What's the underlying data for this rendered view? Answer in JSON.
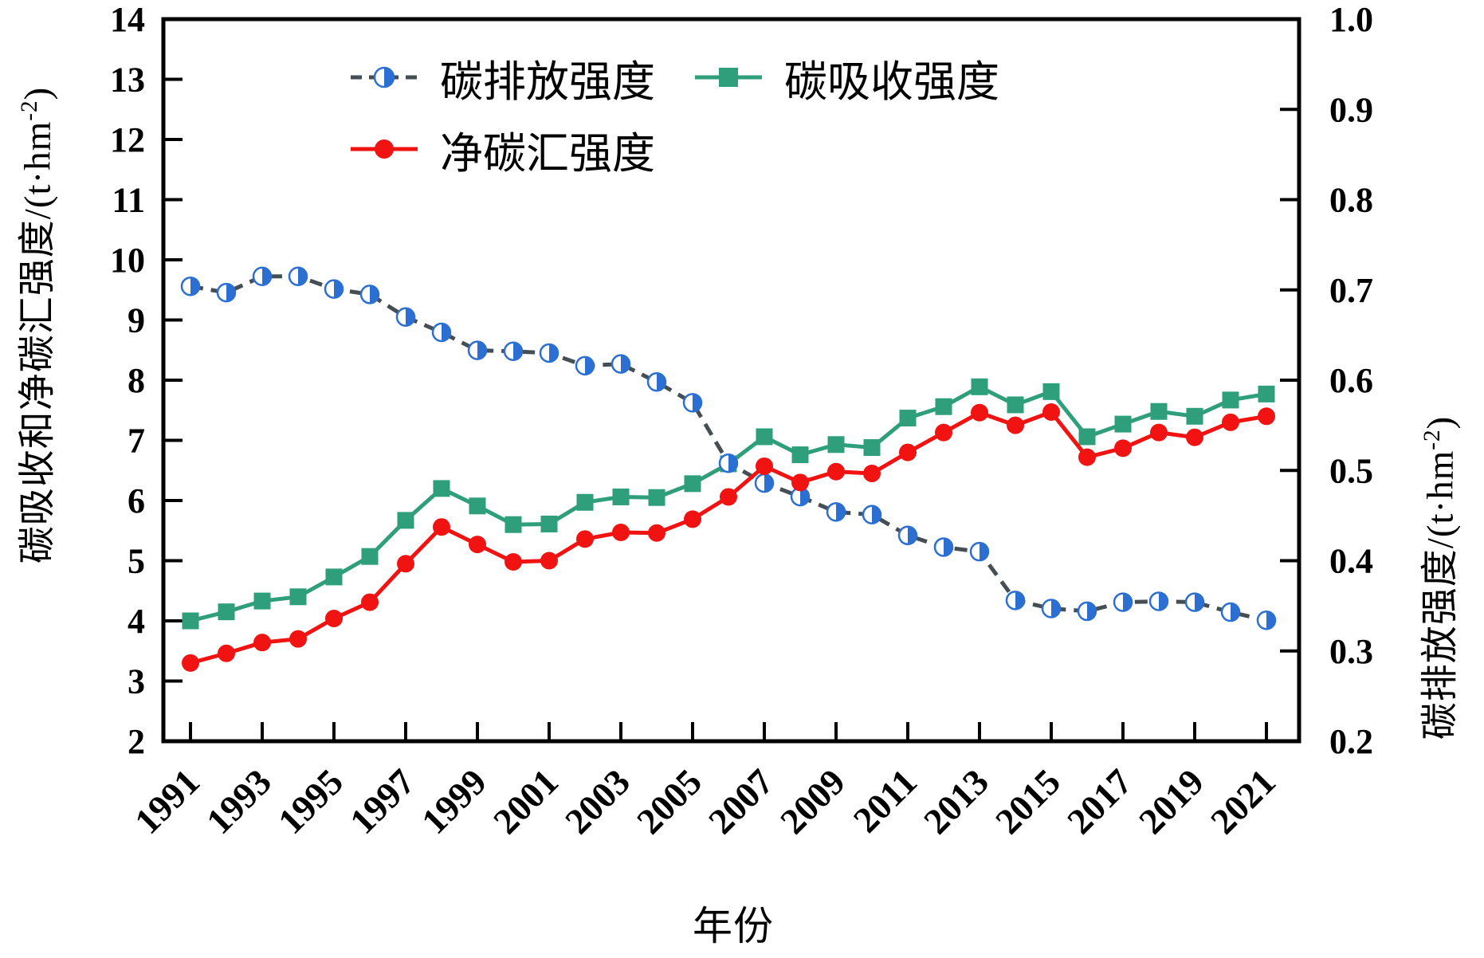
{
  "chart_data": {
    "type": "line",
    "x_label": "年份",
    "x_years": [
      1991,
      1992,
      1993,
      1994,
      1995,
      1996,
      1997,
      1998,
      1999,
      2000,
      2001,
      2002,
      2003,
      2004,
      2005,
      2006,
      2007,
      2008,
      2009,
      2010,
      2011,
      2012,
      2013,
      2014,
      2015,
      2016,
      2017,
      2018,
      2019,
      2020,
      2021
    ],
    "x_tick_labels": [
      "1991",
      "1993",
      "1995",
      "1997",
      "1999",
      "2001",
      "2003",
      "2005",
      "2007",
      "2009",
      "2011",
      "2013",
      "2015",
      "2017",
      "2019",
      "2021"
    ],
    "left_axis": {
      "title_base": "碳吸收和净碳汇强度/(t·hm",
      "title_sup": "-2",
      "title_close": ")",
      "min": 2,
      "max": 14,
      "tick_step": 1
    },
    "right_axis": {
      "title_base": "碳排放强度/(t·hm",
      "title_sup": "-2",
      "title_close": ")",
      "min": 0.2,
      "max": 1.0,
      "tick_step": 0.1
    },
    "grid": false,
    "legend_position": "top-inside",
    "series": [
      {
        "name": "碳排放强度",
        "axis": "right",
        "marker": "half-circle",
        "marker_color": "#2C6FD2",
        "line_color": "#454E53",
        "line_style": "dashed",
        "values": [
          0.704,
          0.697,
          0.715,
          0.715,
          0.701,
          0.695,
          0.67,
          0.653,
          0.633,
          0.632,
          0.63,
          0.616,
          0.618,
          0.598,
          0.575,
          0.508,
          0.486,
          0.471,
          0.454,
          0.451,
          0.428,
          0.415,
          0.41,
          0.356,
          0.347,
          0.344,
          0.354,
          0.355,
          0.354,
          0.343,
          0.334
        ]
      },
      {
        "name": "碳吸收强度",
        "axis": "left",
        "marker": "square",
        "marker_color": "#2E9E7B",
        "line_color": "#2E9E7B",
        "line_style": "solid",
        "values": [
          4.0,
          4.15,
          4.33,
          4.4,
          4.73,
          5.07,
          5.67,
          6.2,
          5.91,
          5.6,
          5.61,
          5.97,
          6.06,
          6.05,
          6.28,
          6.61,
          7.06,
          6.76,
          6.93,
          6.88,
          7.37,
          7.56,
          7.89,
          7.59,
          7.81,
          7.06,
          7.27,
          7.48,
          7.4,
          7.67,
          7.77
        ]
      },
      {
        "name": "净碳汇强度",
        "axis": "left",
        "marker": "circle",
        "marker_color": "#F11212",
        "line_color": "#F11212",
        "line_style": "solid",
        "values": [
          3.3,
          3.46,
          3.64,
          3.7,
          4.04,
          4.31,
          4.95,
          5.56,
          5.27,
          4.98,
          5.0,
          5.36,
          5.47,
          5.46,
          5.69,
          6.06,
          6.57,
          6.3,
          6.48,
          6.45,
          6.8,
          7.13,
          7.46,
          7.25,
          7.47,
          6.72,
          6.87,
          7.13,
          7.05,
          7.3,
          7.4
        ]
      }
    ],
    "frame_color": "#000000",
    "background": "#ffffff"
  }
}
